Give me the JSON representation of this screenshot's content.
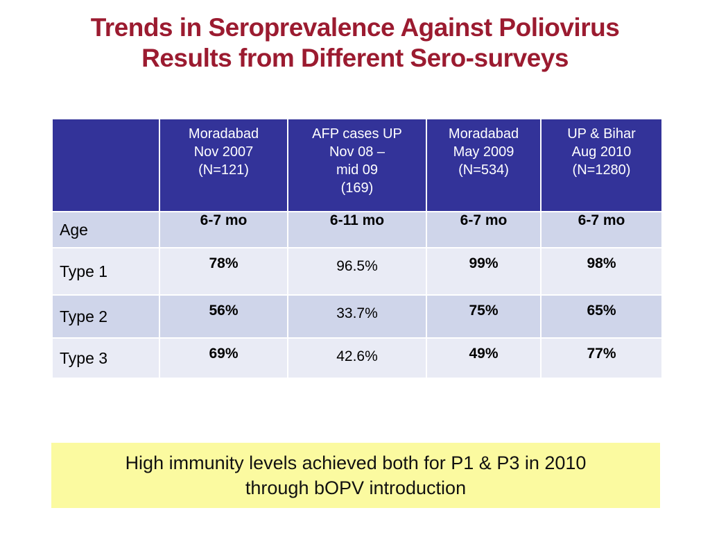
{
  "title": {
    "line1": "Trends in Seroprevalence Against Poliovirus",
    "line2": "Results from Different Sero-surveys"
  },
  "table": {
    "corner": "",
    "columns": [
      {
        "lines": [
          "Moradabad",
          "Nov 2007",
          "(N=121)"
        ]
      },
      {
        "lines": [
          "AFP cases UP",
          "Nov 08 –",
          "mid 09",
          "(169)"
        ]
      },
      {
        "lines": [
          "Moradabad",
          "May 2009",
          "(N=534)"
        ]
      },
      {
        "lines": [
          "UP & Bihar",
          "Aug 2010",
          "(N=1280)"
        ]
      }
    ],
    "rows": [
      {
        "label": "Age",
        "values": [
          "6-7 mo",
          "6-11 mo",
          "6-7 mo",
          "6-7 mo"
        ]
      },
      {
        "label": "Type 1",
        "values": [
          "78%",
          "96.5%",
          "99%",
          "98%"
        ]
      },
      {
        "label": "Type 2",
        "values": [
          "56%",
          "33.7%",
          "75%",
          "65%"
        ]
      },
      {
        "label": "Type 3",
        "values": [
          "69%",
          "42.6%",
          "49%",
          "77%"
        ]
      }
    ]
  },
  "note": {
    "line1": "High immunity levels achieved both for P1 & P3 in 2010",
    "line2": "through bOPV introduction"
  },
  "colors": {
    "title": "#9b1b30",
    "header_bg": "#333399",
    "row_dark": "#cfd5ea",
    "row_light": "#e9ebf5",
    "note_bg": "#fbfaa0"
  }
}
